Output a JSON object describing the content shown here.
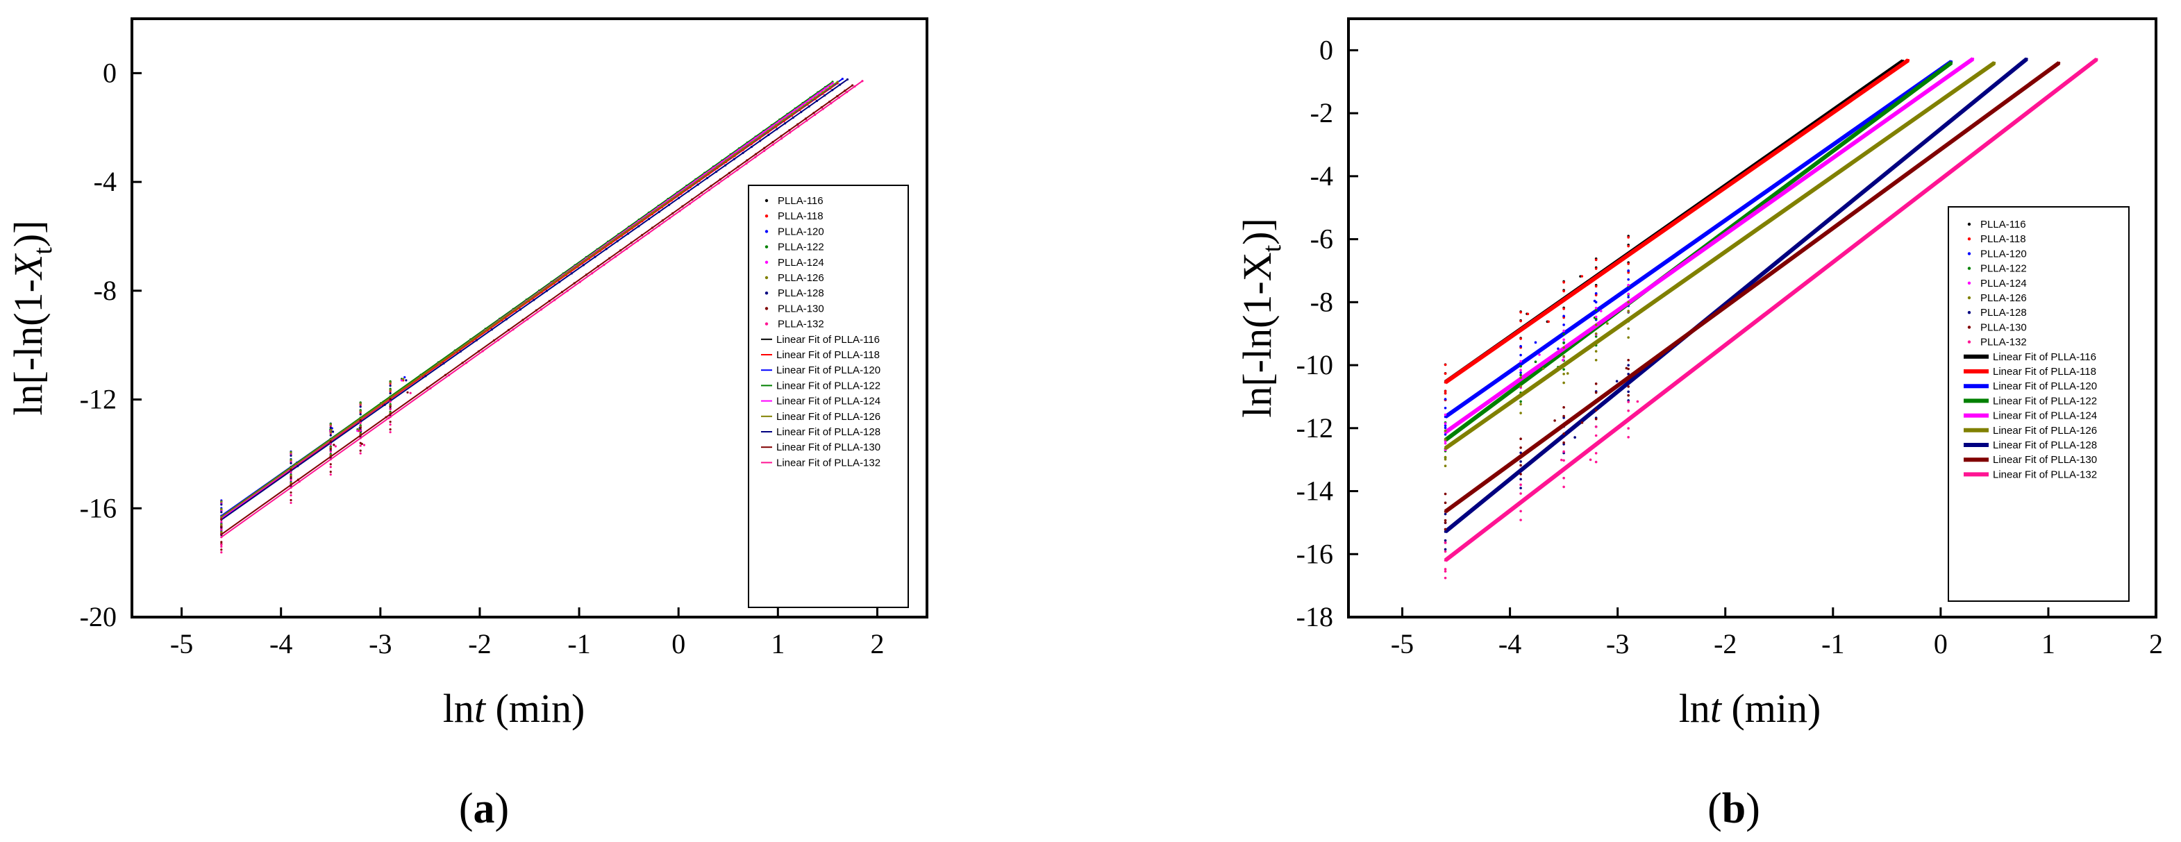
{
  "colors": {
    "PLLA-116": "#000000",
    "PLLA-118": "#ff0000",
    "PLLA-120": "#0000ff",
    "PLLA-122": "#008000",
    "PLLA-124": "#ff00ff",
    "PLLA-126": "#808000",
    "PLLA-128": "#000080",
    "PLLA-130": "#800000",
    "PLLA-132": "#ff1493"
  },
  "chart_data": [
    {
      "type": "scatter",
      "panel_label": {
        "open": "(",
        "letter": "a",
        "close": ")"
      },
      "xlabel": {
        "prefix": "ln",
        "var": "t",
        "suffix": " (min)"
      },
      "ylabel": {
        "prefix": "ln[-ln(1-",
        "var": "X",
        "sub": "t",
        "suffix": ")]"
      },
      "xlim": [
        -5.5,
        2.5
      ],
      "ylim": [
        -20,
        2
      ],
      "x_ticks": [
        -5,
        -4,
        -3,
        -2,
        -1,
        0,
        1,
        2
      ],
      "y_ticks": [
        0,
        -4,
        -8,
        -12,
        -16,
        -20
      ],
      "legend_position": "right-inside",
      "series": [
        {
          "name": "PLLA-116",
          "x_range": [
            -4.6,
            1.55
          ],
          "slope": 2.6,
          "intercept": -4.4
        },
        {
          "name": "PLLA-118",
          "x_range": [
            -4.6,
            1.6
          ],
          "slope": 2.58,
          "intercept": -4.5
        },
        {
          "name": "PLLA-120",
          "x_range": [
            -4.6,
            1.65
          ],
          "slope": 2.57,
          "intercept": -4.45
        },
        {
          "name": "PLLA-122",
          "x_range": [
            -4.6,
            1.55
          ],
          "slope": 2.6,
          "intercept": -4.35
        },
        {
          "name": "PLLA-124",
          "x_range": [
            -4.6,
            1.55
          ],
          "slope": 2.6,
          "intercept": -4.4
        },
        {
          "name": "PLLA-126",
          "x_range": [
            -4.6,
            1.6
          ],
          "slope": 2.58,
          "intercept": -4.45
        },
        {
          "name": "PLLA-128",
          "x_range": [
            -4.6,
            1.7
          ],
          "slope": 2.57,
          "intercept": -4.6
        },
        {
          "name": "PLLA-130",
          "x_range": [
            -4.6,
            1.75
          ],
          "slope": 2.6,
          "intercept": -5.0
        },
        {
          "name": "PLLA-132",
          "x_range": [
            -4.6,
            1.85
          ],
          "slope": 2.6,
          "intercept": -5.1
        }
      ]
    },
    {
      "type": "scatter",
      "panel_label": {
        "open": "(",
        "letter": "b",
        "close": ")"
      },
      "xlabel": {
        "prefix": "ln",
        "var": "t",
        "suffix": " (min)"
      },
      "ylabel": {
        "prefix": "ln[-ln(1-X",
        "var": "",
        "sub": "t",
        "suffix": ")]"
      },
      "xlim": [
        -5.5,
        2
      ],
      "ylim": [
        -18,
        1
      ],
      "x_ticks": [
        -5,
        -4,
        -3,
        -2,
        -1,
        0,
        1,
        2
      ],
      "y_ticks": [
        0,
        -2,
        -4,
        -6,
        -8,
        -10,
        -12,
        -14,
        -16,
        -18
      ],
      "legend_position": "right-inside",
      "series": [
        {
          "name": "PLLA-116",
          "x_range": [
            -4.6,
            -0.35
          ],
          "slope": 2.4,
          "intercept": 0.5
        },
        {
          "name": "PLLA-118",
          "x_range": [
            -4.6,
            -0.3
          ],
          "slope": 2.38,
          "intercept": 0.4
        },
        {
          "name": "PLLA-120",
          "x_range": [
            -4.6,
            0.1
          ],
          "slope": 2.4,
          "intercept": -0.6
        },
        {
          "name": "PLLA-122",
          "x_range": [
            -4.6,
            0.1
          ],
          "slope": 2.55,
          "intercept": -0.65
        },
        {
          "name": "PLLA-124",
          "x_range": [
            -4.6,
            0.3
          ],
          "slope": 2.42,
          "intercept": -1.0
        },
        {
          "name": "PLLA-126",
          "x_range": [
            -4.6,
            0.5
          ],
          "slope": 2.4,
          "intercept": -1.6
        },
        {
          "name": "PLLA-128",
          "x_range": [
            -4.6,
            0.8
          ],
          "slope": 2.78,
          "intercept": -2.5
        },
        {
          "name": "PLLA-130",
          "x_range": [
            -4.6,
            1.1
          ],
          "slope": 2.5,
          "intercept": -3.15
        },
        {
          "name": "PLLA-132",
          "x_range": [
            -4.6,
            1.45
          ],
          "slope": 2.63,
          "intercept": -4.1
        }
      ]
    }
  ],
  "legend": {
    "scatter_names": [
      "PLLA-116",
      "PLLA-118",
      "PLLA-120",
      "PLLA-122",
      "PLLA-124",
      "PLLA-126",
      "PLLA-128",
      "PLLA-130",
      "PLLA-132"
    ],
    "fit_names": [
      "Linear Fit of PLLA-116",
      "Linear Fit of PLLA-118",
      "Linear Fit of PLLA-120",
      "Linear Fit of PLLA-122",
      "Linear Fit of PLLA-124",
      "Linear Fit of PLLA-126",
      "Linear Fit of PLLA-128",
      "Linear Fit of PLLA-130",
      "Linear Fit of PLLA-132"
    ]
  }
}
